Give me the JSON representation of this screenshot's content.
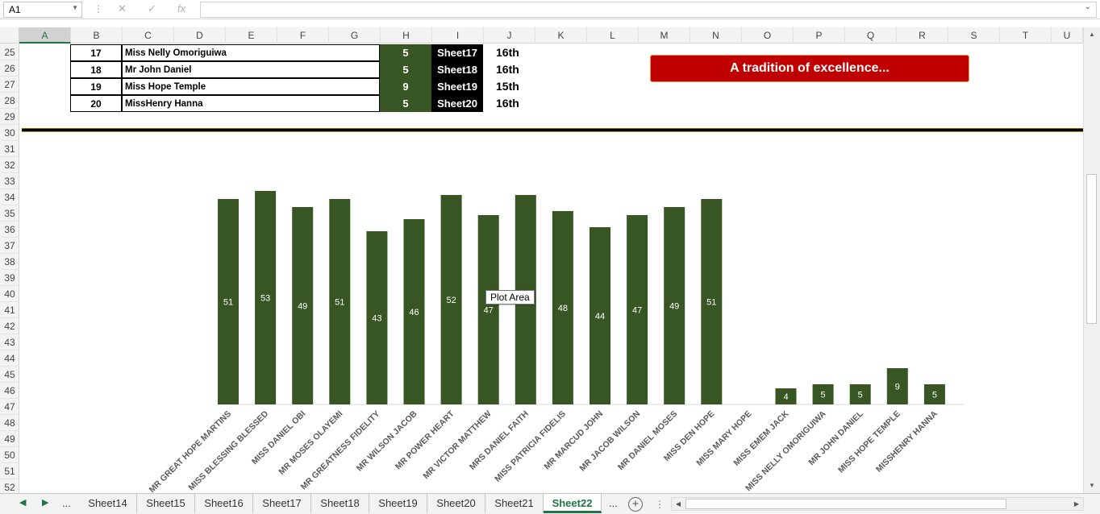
{
  "formula_bar": {
    "name_box": "A1",
    "separator_icon": "vertical-dots-icon",
    "cancel_icon": "x-icon",
    "enter_icon": "check-icon",
    "fx_label": "fx",
    "formula": ""
  },
  "columns": [
    "A",
    "B",
    "C",
    "D",
    "E",
    "F",
    "G",
    "H",
    "I",
    "J",
    "K",
    "L",
    "M",
    "N",
    "O",
    "P",
    "Q",
    "R",
    "S",
    "T",
    "U"
  ],
  "rows": [
    "25",
    "26",
    "27",
    "28",
    "29",
    "30",
    "31",
    "32",
    "33",
    "34",
    "35",
    "36",
    "37",
    "38",
    "39",
    "40",
    "41",
    "42",
    "43",
    "44",
    "45",
    "46",
    "47",
    "48",
    "49",
    "50",
    "51",
    "52"
  ],
  "table": [
    {
      "num": "17",
      "name": "Miss Nelly Omoriguiwa",
      "score": "5",
      "sheet": "Sheet17",
      "position": "16th"
    },
    {
      "num": "18",
      "name": "Mr John Daniel",
      "score": "5",
      "sheet": "Sheet18",
      "position": "16th"
    },
    {
      "num": "19",
      "name": "Miss Hope Temple",
      "score": "9",
      "sheet": "Sheet19",
      "position": "15th"
    },
    {
      "num": "20",
      "name": "MissHenry Hanna",
      "score": "5",
      "sheet": "Sheet20",
      "position": "16th"
    }
  ],
  "banner": "A tradition of excellence...",
  "tooltip": "Plot Area",
  "chart_data": {
    "type": "bar",
    "title": "",
    "xlabel": "",
    "ylabel": "",
    "ylim": [
      0,
      55
    ],
    "bar_color": "#375623",
    "categories": [
      "MR GREAT HOPE MARTINS",
      "MISS BLESSING BLESSED",
      "MISS DANIEL OBI",
      "MR MOSES OLAYEMI",
      "MR GREATNESS FIDELITY",
      "MR WILSON JACOB",
      "MR POWER HEART",
      "MR VICTOR MATTHEW",
      "MRS DANIEL FAITH",
      "MISS PATRICIA FIDELIS",
      "MR MARCUD JOHN",
      "MR JACOB WILSON",
      "MR DANIEL MOSES",
      "MISS DEN HOPE",
      "MISS MARY HOPE",
      "MISS EMEM JACK",
      "MISS NELLY OMORIGUIWA",
      "MR JOHN DANIEL",
      "MISS HOPE TEMPLE",
      "MISSHENRY HANNA"
    ],
    "values": [
      51,
      53,
      49,
      51,
      43,
      46,
      52,
      47,
      52,
      48,
      44,
      47,
      49,
      51,
      null,
      4,
      5,
      5,
      9,
      5
    ],
    "labels": [
      "51",
      "53",
      "49",
      "51",
      "43",
      "46",
      "52",
      "47",
      "52",
      "48",
      "44",
      "47",
      "49",
      "51",
      "",
      "4",
      "5",
      "5",
      "9",
      "5"
    ]
  },
  "tabs": {
    "more_left": "...",
    "items": [
      "Sheet14",
      "Sheet15",
      "Sheet16",
      "Sheet17",
      "Sheet18",
      "Sheet19",
      "Sheet20",
      "Sheet21",
      "Sheet22"
    ],
    "active": "Sheet22",
    "more_right": "..."
  }
}
